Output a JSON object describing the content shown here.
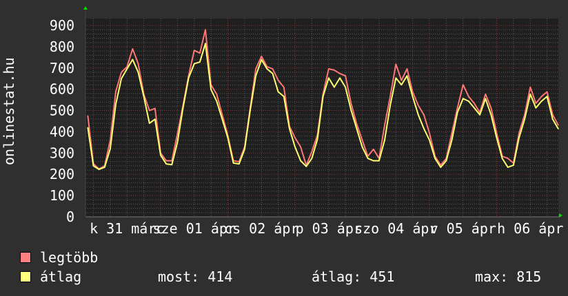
{
  "chart_data": {
    "type": "line",
    "ylabel": "onlinestat.hu",
    "ylim": [
      0,
      900
    ],
    "yticks": [
      "0",
      "100",
      "200",
      "300",
      "400",
      "500",
      "600",
      "700",
      "800",
      "900"
    ],
    "xtick_labels": [
      "k 31 márc",
      "sze 01 ápr",
      "cs 02 ápr",
      "p 03 ápr",
      "szo 04 ápr",
      "v 05 ápr",
      "h 06 ápr"
    ],
    "grid": true,
    "legend_placement": "bottom-left",
    "x": [
      "03-30 22:00",
      "03-31 00:00",
      "03-31 02:00",
      "03-31 04:00",
      "03-31 06:00",
      "03-31 08:00",
      "03-31 10:00",
      "03-31 12:00",
      "03-31 14:00",
      "03-31 16:00",
      "03-31 18:00",
      "03-31 20:00",
      "03-31 22:00",
      "04-01 00:00",
      "04-01 02:00",
      "04-01 04:00",
      "04-01 06:00",
      "04-01 08:00",
      "04-01 10:00",
      "04-01 12:00",
      "04-01 14:00",
      "04-01 16:00",
      "04-01 18:00",
      "04-01 20:00",
      "04-01 22:00",
      "04-02 00:00",
      "04-02 02:00",
      "04-02 04:00",
      "04-02 06:00",
      "04-02 08:00",
      "04-02 10:00",
      "04-02 12:00",
      "04-02 14:00",
      "04-02 16:00",
      "04-02 18:00",
      "04-02 20:00",
      "04-02 22:00",
      "04-03 00:00",
      "04-03 02:00",
      "04-03 04:00",
      "04-03 06:00",
      "04-03 08:00",
      "04-03 10:00",
      "04-03 12:00",
      "04-03 14:00",
      "04-03 16:00",
      "04-03 18:00",
      "04-03 20:00",
      "04-03 22:00",
      "04-04 00:00",
      "04-04 02:00",
      "04-04 04:00",
      "04-04 06:00",
      "04-04 08:00",
      "04-04 10:00",
      "04-04 12:00",
      "04-04 14:00",
      "04-04 16:00",
      "04-04 18:00",
      "04-04 20:00",
      "04-04 22:00",
      "04-05 00:00",
      "04-05 02:00",
      "04-05 04:00",
      "04-05 06:00",
      "04-05 08:00",
      "04-05 10:00",
      "04-05 12:00",
      "04-05 14:00",
      "04-05 16:00",
      "04-05 18:00",
      "04-05 20:00",
      "04-05 22:00",
      "04-06 00:00",
      "04-06 02:00",
      "04-06 04:00",
      "04-06 06:00",
      "04-06 08:00",
      "04-06 10:00",
      "04-06 12:00",
      "04-06 14:00",
      "04-06 16:00",
      "04-06 18:00",
      "04-06 20:00",
      "04-06 22:00"
    ],
    "series": [
      {
        "name": "legtöbb",
        "color": "#ff7878",
        "values": [
          475,
          250,
          225,
          240,
          360,
          590,
          680,
          706,
          790,
          720,
          577,
          500,
          510,
          300,
          264,
          264,
          390,
          524,
          663,
          783,
          770,
          880,
          621,
          577,
          480,
          383,
          264,
          259,
          329,
          512,
          696,
          755,
          706,
          696,
          642,
          610,
          426,
          372,
          329,
          243,
          307,
          385,
          577,
          696,
          690,
          674,
          663,
          534,
          437,
          361,
          285,
          318,
          275,
          431,
          566,
          718,
          642,
          696,
          588,
          524,
          480,
          394,
          285,
          243,
          275,
          394,
          512,
          621,
          566,
          534,
          491,
          577,
          512,
          394,
          285,
          275,
          253,
          394,
          480,
          610,
          534,
          566,
          588,
          480,
          431
        ]
      },
      {
        "name": "átlag",
        "color": "#ffff70",
        "values": [
          420,
          240,
          223,
          233,
          320,
          530,
          650,
          696,
          740,
          680,
          566,
          440,
          459,
          290,
          249,
          245,
          350,
          512,
          653,
          720,
          728,
          815,
          599,
          544,
          459,
          372,
          253,
          249,
          318,
          502,
          663,
          739,
          696,
          674,
          588,
          566,
          415,
          329,
          264,
          237,
          275,
          365,
          566,
          653,
          610,
          653,
          610,
          502,
          415,
          329,
          275,
          264,
          264,
          361,
          524,
          653,
          621,
          663,
          566,
          480,
          415,
          361,
          275,
          233,
          264,
          361,
          491,
          556,
          544,
          512,
          480,
          556,
          480,
          372,
          275,
          233,
          243,
          372,
          459,
          577,
          512,
          544,
          566,
          459,
          414
        ]
      }
    ]
  },
  "legend": {
    "max_label": "legtöbb",
    "max_color": "#ff8080",
    "avg_label": "átlag",
    "avg_color": "#ffff80",
    "most": "most: 414",
    "atlag": "átlag: 451",
    "max": "max: 815"
  },
  "colors": {
    "background": "#2f2f2f",
    "plot_background": "#1f1f1f",
    "major_grid": "#8a3a3a",
    "minor_grid": "#5a5a5a",
    "arrow": "#00dd00"
  }
}
